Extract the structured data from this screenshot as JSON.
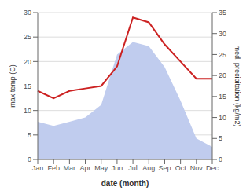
{
  "chart_data": {
    "type": "line",
    "xlabel": "date (month)",
    "ylabel": "max temp (C)",
    "y2label": "med. precipitation (kg/m2)",
    "categories": [
      "Jan",
      "Feb",
      "Mar",
      "Apr",
      "May",
      "Jun",
      "Jul",
      "Aug",
      "Sep",
      "Oct",
      "Nov",
      "Dec"
    ],
    "series": [
      {
        "type": "area",
        "axis": "y2",
        "color": "#c0ccee",
        "values": [
          9.0,
          8.0,
          9.0,
          10.0,
          13.0,
          25.0,
          28.0,
          27.0,
          22.0,
          14.0,
          5.0,
          3.0
        ]
      },
      {
        "type": "line",
        "color": "#cc2222",
        "values": [
          14.0,
          12.5,
          14.0,
          14.5,
          15.0,
          19.0,
          29.0,
          28.0,
          23.5,
          20.0,
          16.5,
          16.5
        ]
      }
    ],
    "ylim": [
      0,
      30
    ],
    "yticks": [
      0,
      5,
      10,
      15,
      20,
      25,
      30
    ],
    "y2lim": [
      0,
      35
    ],
    "y2ticks": [
      0,
      5,
      10,
      15,
      20,
      25,
      30,
      35
    ],
    "grid": true
  }
}
